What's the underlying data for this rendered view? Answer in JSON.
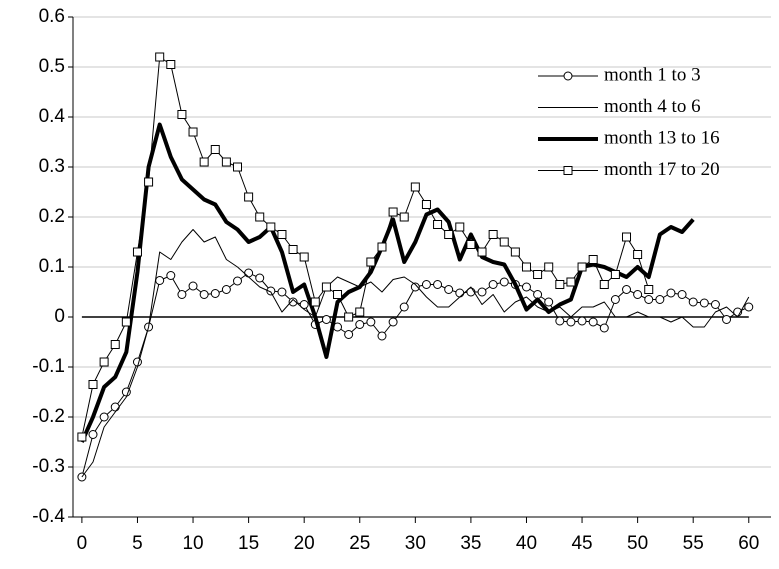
{
  "chart_data": {
    "type": "line",
    "x": [
      0,
      1,
      2,
      3,
      4,
      5,
      6,
      7,
      8,
      9,
      10,
      11,
      12,
      13,
      14,
      15,
      16,
      17,
      18,
      19,
      20,
      21,
      22,
      23,
      24,
      25,
      26,
      27,
      28,
      29,
      30,
      31,
      32,
      33,
      34,
      35,
      36,
      37,
      38,
      39,
      40,
      41,
      42,
      43,
      44,
      45,
      46,
      47,
      48,
      49,
      50,
      51,
      52,
      53,
      54,
      55,
      56,
      57,
      58,
      59,
      60
    ],
    "series": [
      {
        "name": "month 1 to 3",
        "color": "#000000",
        "marker": "circle",
        "width": 1,
        "values": [
          -0.32,
          -0.235,
          -0.2,
          -0.18,
          -0.15,
          -0.09,
          -0.02,
          0.073,
          0.083,
          0.045,
          0.062,
          0.045,
          0.047,
          0.055,
          0.072,
          0.088,
          0.078,
          0.052,
          0.05,
          0.03,
          0.025,
          -0.015,
          -0.005,
          -0.02,
          -0.035,
          -0.015,
          -0.01,
          -0.038,
          -0.01,
          0.02,
          0.06,
          0.065,
          0.065,
          0.055,
          0.048,
          0.05,
          0.05,
          0.065,
          0.07,
          0.065,
          0.06,
          0.045,
          0.03,
          -0.008,
          -0.01,
          -0.008,
          -0.01,
          -0.022,
          0.035,
          0.055,
          0.045,
          0.035,
          0.035,
          0.048,
          0.045,
          0.03,
          0.028,
          0.025,
          -0.005,
          0.01,
          0.02
        ]
      },
      {
        "name": "month 4 to 6",
        "color": "#000000",
        "marker": "none",
        "width": 1,
        "values": [
          -0.32,
          -0.29,
          -0.22,
          -0.19,
          -0.16,
          -0.1,
          -0.02,
          0.13,
          0.115,
          0.15,
          0.175,
          0.15,
          0.16,
          0.115,
          0.1,
          0.08,
          0.06,
          0.05,
          0.01,
          0.035,
          0.015,
          0.0,
          0.06,
          0.08,
          0.07,
          0.06,
          0.07,
          0.05,
          0.075,
          0.08,
          0.065,
          0.04,
          0.02,
          0.02,
          0.04,
          0.06,
          0.025,
          0.045,
          0.01,
          0.03,
          0.04,
          0.02,
          0.01,
          0.02,
          0.0,
          0.02,
          0.02,
          0.03,
          0.0,
          0.0,
          0.01,
          0.0,
          0.0,
          -0.01,
          0.0,
          -0.02,
          -0.02,
          0.01,
          0.02,
          0.0,
          0.04
        ]
      },
      {
        "name": "month 13 to 16",
        "color": "#000000",
        "marker": "none",
        "width": 4,
        "values": [
          -0.25,
          -0.2,
          -0.14,
          -0.12,
          -0.07,
          0.09,
          0.3,
          0.385,
          0.32,
          0.275,
          0.255,
          0.235,
          0.225,
          0.19,
          0.175,
          0.15,
          0.16,
          0.18,
          0.13,
          0.05,
          0.065,
          0.0,
          -0.08,
          0.03,
          0.05,
          0.06,
          0.09,
          0.14,
          0.195,
          0.11,
          0.15,
          0.205,
          0.215,
          0.19,
          0.115,
          0.165,
          0.12,
          0.11,
          0.105,
          0.065,
          0.015,
          0.035,
          0.01,
          0.025,
          0.035,
          0.1,
          0.105,
          0.1,
          0.09,
          0.08,
          0.1,
          0.08,
          0.165,
          0.18,
          0.17,
          0.195,
          null,
          null,
          null,
          null,
          null
        ]
      },
      {
        "name": "month 17 to 20",
        "color": "#000000",
        "marker": "square",
        "width": 1,
        "values": [
          -0.24,
          -0.135,
          -0.09,
          -0.055,
          -0.01,
          0.13,
          0.27,
          0.52,
          0.505,
          0.405,
          0.37,
          0.31,
          0.335,
          0.31,
          0.3,
          0.24,
          0.2,
          0.18,
          0.165,
          0.135,
          0.12,
          0.03,
          0.06,
          0.045,
          0.0,
          0.01,
          0.11,
          0.14,
          0.21,
          0.2,
          0.26,
          0.225,
          0.185,
          0.165,
          0.18,
          0.145,
          0.13,
          0.165,
          0.15,
          0.13,
          0.1,
          0.085,
          0.1,
          0.065,
          0.07,
          0.1,
          0.115,
          0.065,
          0.085,
          0.16,
          0.125,
          0.055,
          null,
          null,
          null,
          null,
          null,
          null,
          null,
          null,
          null
        ]
      }
    ],
    "xlim": [
      -0.8,
      62
    ],
    "xticks": [
      0,
      5,
      10,
      15,
      20,
      25,
      30,
      35,
      40,
      45,
      50,
      55,
      60
    ],
    "ylim": [
      -0.4,
      0.6
    ],
    "yticks": [
      -0.4,
      -0.3,
      -0.2,
      -0.1,
      0,
      0.1,
      0.2,
      0.3,
      0.4,
      0.5,
      0.6
    ],
    "grid": true,
    "legend": "top-right"
  }
}
